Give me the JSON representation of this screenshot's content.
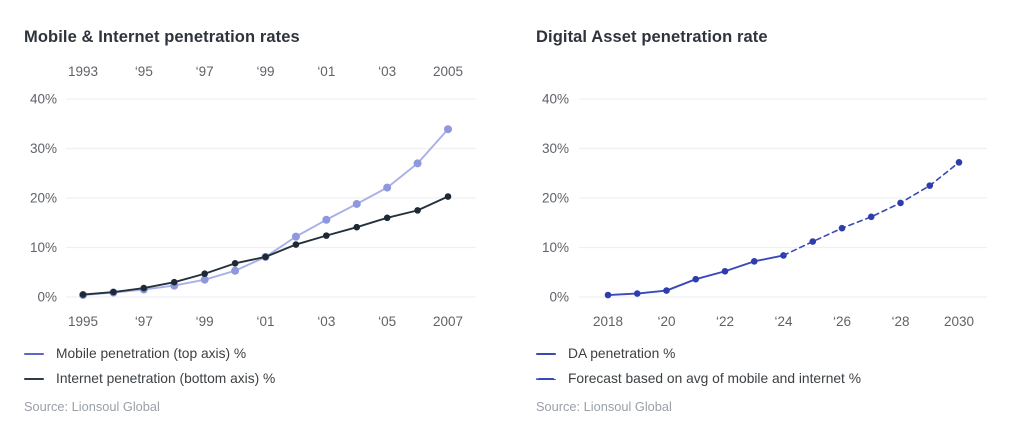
{
  "page": {
    "background": "#ffffff",
    "tick_color": "#5f6368",
    "grid_color": "#eef0f2",
    "title_color": "#2e333c",
    "source_color": "#9aa0a6"
  },
  "chart_data": [
    {
      "type": "line",
      "title": "Mobile & Internet penetration rates",
      "source": "Source: Lionsoul Global",
      "y_axis": {
        "min": 0,
        "max": 40,
        "ticks": [
          "0%",
          "10%",
          "20%",
          "30%",
          "40%"
        ],
        "grid": true
      },
      "x_axis_top": {
        "ticks": [
          "1993",
          "‘95",
          "‘97",
          "‘99",
          "‘01",
          "‘03",
          "2005"
        ]
      },
      "x_axis_bottom": {
        "ticks": [
          "1995",
          "‘97",
          "‘99",
          "‘01",
          "‘03",
          "‘05",
          "2007"
        ]
      },
      "legend_position": "bottom-left",
      "series": [
        {
          "name": "Mobile penetration (top axis) %",
          "axis": "top",
          "start_slot": 0,
          "dash": false,
          "line_color": "#a9b0e6",
          "marker_color": "#8e98dc",
          "legend_color": "#5b66c7",
          "years": [
            1993,
            1994,
            1995,
            1996,
            1997,
            1998,
            1999,
            2000,
            2001,
            2002,
            2003,
            2004,
            2005
          ],
          "values": [
            0.4,
            0.9,
            1.5,
            2.3,
            3.5,
            5.3,
            8.1,
            12.2,
            15.6,
            18.8,
            22.1,
            27.0,
            33.9
          ]
        },
        {
          "name": "Internet penetration (bottom axis) %",
          "axis": "bottom",
          "start_slot": 0,
          "dash": false,
          "line_color": "#25313d",
          "marker_color": "#1d2935",
          "legend_color": "#2e3b49",
          "years": [
            1995,
            1996,
            1997,
            1998,
            1999,
            2000,
            2001,
            2002,
            2003,
            2004,
            2005,
            2006,
            2007
          ],
          "values": [
            0.5,
            1.0,
            1.8,
            3.0,
            4.7,
            6.8,
            8.1,
            10.6,
            12.4,
            14.1,
            16.0,
            17.5,
            20.3
          ]
        }
      ]
    },
    {
      "type": "line",
      "title": "Digital Asset penetration rate",
      "source": "Source: Lionsoul Global",
      "y_axis": {
        "min": 0,
        "max": 40,
        "ticks": [
          "0%",
          "10%",
          "20%",
          "30%",
          "40%"
        ],
        "grid": true
      },
      "x_axis_bottom": {
        "ticks": [
          "2018",
          "‘20",
          "‘22",
          "‘24",
          "‘26",
          "‘28",
          "2030"
        ]
      },
      "legend_position": "bottom-left",
      "series": [
        {
          "name": "DA penetration %",
          "axis": "bottom",
          "start_slot": 0,
          "dash": false,
          "line_color": "#3a49b8",
          "marker_color": "#2e3cae",
          "legend_color": "#3a49b8",
          "years": [
            2018,
            2019,
            2020,
            2021,
            2022,
            2023,
            2024
          ],
          "values": [
            0.4,
            0.7,
            1.3,
            3.6,
            5.2,
            7.2,
            8.4
          ]
        },
        {
          "name": "Forecast based on avg of mobile and internet %",
          "axis": "bottom",
          "start_slot": 6,
          "dash": true,
          "line_color": "#3a49b8",
          "marker_color": "#2e3cae",
          "legend_color": "#3a49b8",
          "years": [
            2024,
            2025,
            2026,
            2027,
            2028,
            2029,
            2030
          ],
          "values": [
            8.4,
            11.2,
            13.9,
            16.2,
            19.0,
            22.5,
            27.2
          ]
        }
      ]
    }
  ]
}
